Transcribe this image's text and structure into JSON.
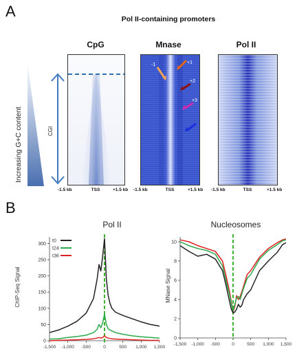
{
  "panel_a": {
    "letter": "A",
    "title": "Pol II-containing promoters",
    "side_label": "Increasing G+C content",
    "cgi_label": "CGI",
    "heatmaps": [
      {
        "title": "CpG",
        "xticks": [
          "-1.5 kb",
          "TSS",
          "+1.5 kb"
        ]
      },
      {
        "title": "Mnase",
        "xticks": [
          "-1.5 kb",
          "TSS",
          "+1.5 kb"
        ]
      },
      {
        "title": "Pol II",
        "xticks": [
          "-1.5 kb",
          "TSS",
          "+1.5 kb"
        ]
      }
    ],
    "nucleosome_labels": [
      "-1",
      "+1",
      "+2",
      "+3"
    ],
    "arrow_colors": [
      "#f2a35a",
      "#e0661a",
      "#8b1010",
      "#d42ab0",
      "#1a2ee0"
    ]
  },
  "panel_b": {
    "letter": "B",
    "colors": {
      "t0": "#222222",
      "t24": "#2aa84a",
      "t36": "#e02020",
      "tss_line": "#3bb52a"
    }
  },
  "chart_data": [
    {
      "type": "line",
      "title": "Pol II",
      "ylabel": "ChIP-Seq Signal",
      "xlabel": "",
      "xlim": [
        -1500,
        1500
      ],
      "ylim": [
        0,
        320
      ],
      "xticks": [
        "-1,500",
        "-1,000",
        "-500",
        "0",
        "500",
        "1,000",
        "1,500"
      ],
      "yticks": [
        "0",
        "50",
        "100",
        "150",
        "200",
        "250",
        "300"
      ],
      "legend": "top-left",
      "x": [
        -1500,
        -1250,
        -1000,
        -750,
        -500,
        -300,
        -200,
        -150,
        -100,
        -50,
        0,
        50,
        100,
        150,
        200,
        300,
        500,
        750,
        1000,
        1250,
        1500
      ],
      "series": [
        {
          "name": "t0",
          "values": [
            25,
            33,
            45,
            60,
            85,
            130,
            190,
            235,
            215,
            260,
            315,
            190,
            140,
            115,
            100,
            88,
            78,
            68,
            58,
            50,
            45
          ]
        },
        {
          "name": "t24",
          "values": [
            5,
            6,
            10,
            13,
            17,
            25,
            35,
            50,
            40,
            55,
            82,
            50,
            37,
            33,
            30,
            25,
            20,
            15,
            12,
            10,
            8
          ]
        },
        {
          "name": "t36",
          "values": [
            0,
            1,
            2,
            3,
            4,
            6,
            8,
            10,
            8,
            10,
            15,
            10,
            8,
            7,
            6,
            5,
            4,
            3,
            2,
            1,
            1
          ]
        }
      ]
    },
    {
      "type": "line",
      "title": "Nucleosomes",
      "ylabel": "MNase Signal",
      "xlabel": "",
      "xlim": [
        -1500,
        1500
      ],
      "ylim": [
        0,
        10.5
      ],
      "xticks": [
        "-1,500",
        "-1,000",
        "-500",
        "0",
        "500",
        "1,000",
        "1,500"
      ],
      "yticks": [
        "0",
        "2",
        "4",
        "6",
        "8",
        "10"
      ],
      "x": [
        -1500,
        -1250,
        -1000,
        -750,
        -500,
        -300,
        -200,
        -100,
        -50,
        0,
        50,
        100,
        150,
        200,
        250,
        300,
        400,
        500,
        750,
        1000,
        1250,
        1400,
        1500
      ],
      "series": [
        {
          "name": "t0",
          "values": [
            9.6,
            9.0,
            8.5,
            8.7,
            8.2,
            7.0,
            5.5,
            3.8,
            3.0,
            2.6,
            2.7,
            3.0,
            3.5,
            3.2,
            3.4,
            4.0,
            4.6,
            5.0,
            7.0,
            8.0,
            8.9,
            9.7,
            9.9
          ]
        },
        {
          "name": "t24",
          "values": [
            10.0,
            9.6,
            9.3,
            9.1,
            8.7,
            7.5,
            6.0,
            4.5,
            3.6,
            2.8,
            3.5,
            4.2,
            4.3,
            4.0,
            4.6,
            5.2,
            6.2,
            6.6,
            8.2,
            9.1,
            9.7,
            10.1,
            10.2
          ]
        },
        {
          "name": "t36",
          "values": [
            10.2,
            10.0,
            9.6,
            9.3,
            9.0,
            8.0,
            6.5,
            4.8,
            3.8,
            2.7,
            3.3,
            4.4,
            4.0,
            4.3,
            4.8,
            5.4,
            6.6,
            7.0,
            8.4,
            9.3,
            9.9,
            10.2,
            10.3
          ]
        }
      ]
    }
  ]
}
